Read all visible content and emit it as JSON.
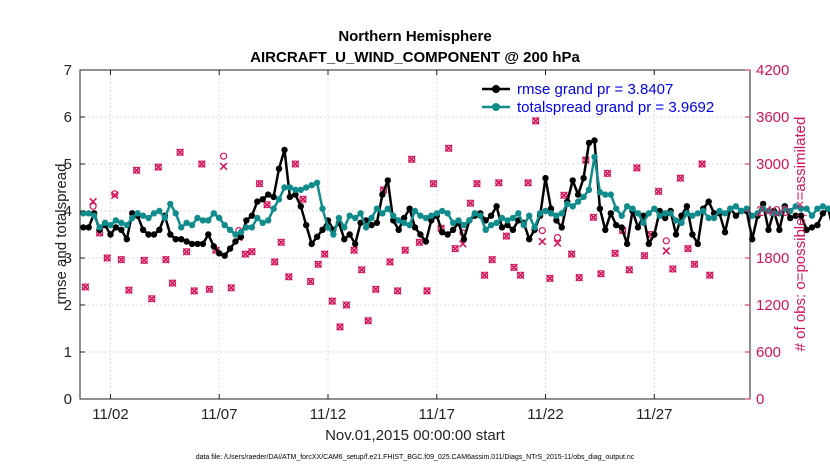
{
  "chart_data": {
    "type": "line",
    "title": "Northern Hemisphere",
    "subtitle": "AIRCRAFT_U_WIND_COMPONENT @ 200 hPa",
    "xlabel": "Nov.01,2015 00:00:00 start",
    "ylabel": "rmse and totalspread",
    "y2label": "# of obs: o=possible; ×=assimilated",
    "footnote": "data file: /Users/raeder/DAI/ATM_forcXX/CAM6_setup/f.e21.FHIST_BGC.f09_025.CAM6assim.011/Diags_NTrS_2015-11/obs_diag_output.nc",
    "xlim": [
      0.6,
      31.4
    ],
    "ylim": [
      0,
      7
    ],
    "y2lim": [
      0,
      4200
    ],
    "x_ticks": [
      {
        "x": 2,
        "label": "11/02"
      },
      {
        "x": 7,
        "label": "11/07"
      },
      {
        "x": 12,
        "label": "11/12"
      },
      {
        "x": 17,
        "label": "11/17"
      },
      {
        "x": 22,
        "label": "11/22"
      },
      {
        "x": 27,
        "label": "11/27"
      }
    ],
    "y_ticks": [
      0,
      1,
      2,
      3,
      4,
      5,
      6,
      7
    ],
    "y2_ticks": [
      0,
      600,
      1200,
      1800,
      2400,
      3000,
      3600,
      4200
    ],
    "legend": {
      "position": "top-right",
      "entries": [
        "rmse grand pr = 3.8407",
        "totalspread grand pr = 3.9692"
      ]
    },
    "x_start": 0.75,
    "x_step": 0.25,
    "series": [
      {
        "name": "rmse grand pr = 3.8407",
        "axis": "left",
        "color": "#000000",
        "values": [
          3.65,
          3.65,
          3.95,
          3.6,
          3.7,
          3.5,
          3.65,
          3.6,
          3.4,
          3.95,
          3.9,
          3.6,
          3.5,
          3.5,
          3.6,
          3.9,
          3.5,
          3.4,
          3.4,
          3.35,
          3.3,
          3.3,
          3.3,
          3.5,
          3.25,
          3.1,
          3.05,
          3.2,
          3.35,
          3.45,
          3.8,
          3.9,
          4.2,
          4.25,
          4.35,
          4.3,
          4.9,
          5.3,
          4.3,
          4.35,
          4.1,
          3.7,
          3.3,
          3.45,
          3.6,
          3.8,
          3.6,
          3.75,
          3.4,
          3.5,
          3.3,
          3.75,
          3.8,
          3.7,
          3.75,
          4.35,
          4.65,
          3.8,
          3.6,
          3.85,
          4.05,
          3.65,
          3.5,
          3.35,
          3.8,
          3.9,
          3.55,
          3.5,
          3.6,
          3.75,
          3.4,
          3.8,
          3.9,
          3.95,
          3.8,
          3.9,
          4.1,
          3.65,
          3.7,
          3.6,
          3.8,
          3.75,
          3.4,
          3.6,
          3.9,
          4.7,
          4.05,
          3.8,
          3.65,
          4.2,
          4.65,
          4.35,
          4.7,
          5.45,
          5.5,
          4.05,
          3.6,
          3.95,
          3.7,
          3.65,
          3.3,
          4.0,
          3.65,
          3.9,
          3.3,
          3.5,
          4.0,
          3.85,
          4.0,
          3.5,
          3.9,
          4.1,
          3.5,
          3.3,
          4.05,
          4.2,
          3.95,
          3.95,
          3.55,
          4.05,
          3.9,
          4.0,
          4.0,
          3.4,
          3.9,
          4.15,
          3.6,
          4.0,
          3.6,
          4.1,
          3.85,
          3.9,
          3.9,
          3.6,
          3.65,
          3.7,
          3.95,
          4.05,
          3.55,
          3.2
        ]
      },
      {
        "name": "totalspread grand pr = 3.9692",
        "axis": "left",
        "color": "#118c8c",
        "values": [
          3.95,
          3.95,
          3.9,
          3.65,
          3.75,
          3.7,
          3.8,
          3.75,
          3.7,
          3.85,
          3.95,
          3.9,
          3.85,
          3.95,
          4.0,
          3.85,
          4.15,
          3.95,
          3.65,
          3.75,
          3.7,
          3.85,
          3.8,
          3.8,
          3.95,
          3.85,
          3.7,
          3.6,
          3.5,
          3.55,
          3.65,
          3.65,
          3.85,
          3.75,
          3.8,
          4.05,
          4.25,
          4.5,
          4.5,
          4.45,
          4.45,
          4.5,
          4.55,
          4.6,
          4.05,
          3.65,
          3.5,
          3.85,
          3.65,
          3.9,
          3.85,
          3.95,
          3.65,
          3.85,
          4.05,
          3.95,
          4.05,
          3.9,
          3.8,
          3.75,
          3.7,
          4.0,
          3.9,
          3.85,
          3.9,
          3.95,
          4.0,
          3.95,
          3.75,
          3.8,
          3.7,
          3.8,
          3.95,
          3.9,
          3.6,
          3.7,
          3.75,
          3.85,
          3.8,
          3.85,
          3.95,
          3.7,
          3.9,
          3.65,
          3.95,
          4.0,
          3.95,
          3.9,
          3.95,
          4.15,
          4.1,
          4.2,
          4.3,
          4.45,
          5.15,
          4.4,
          4.35,
          4.35,
          4.05,
          3.9,
          4.1,
          4.05,
          3.95,
          3.75,
          3.95,
          4.05,
          3.9,
          3.95,
          3.95,
          3.8,
          3.75,
          3.95,
          3.9,
          3.95,
          4.0,
          3.85,
          3.85,
          4.0,
          3.95,
          4.05,
          4.1,
          4.0,
          4.05,
          3.9,
          3.95,
          4.05,
          4.0,
          3.95,
          3.95,
          4.05,
          4.0,
          4.1,
          4.05,
          4.05,
          3.9,
          4.05,
          4.1,
          4.05,
          4.0,
          3.85
        ]
      },
      {
        "name": "possible",
        "axis": "right",
        "color": "#d4145a",
        "marker": "circle",
        "values": [
          1430,
          2460,
          2120,
          1800,
          2620,
          1780,
          1390,
          2920,
          1770,
          1280,
          2960,
          1780,
          1480,
          3150,
          1880,
          1380,
          3000,
          1400,
          1900,
          3100,
          1420,
          2150,
          1850,
          1880,
          2750,
          2480,
          1750,
          2000,
          1560,
          3000,
          2550,
          1500,
          1720,
          1850,
          1250,
          920,
          1200,
          1900,
          1650,
          1000,
          1400,
          2670,
          1750,
          1380,
          1900,
          3060,
          2000,
          1380,
          2750,
          2180,
          3200,
          1920,
          2120,
          2500,
          2750,
          1580,
          1780,
          2760,
          2080,
          1680,
          1580,
          2760,
          3550,
          2150,
          1540,
          2060,
          2600,
          1850,
          1550,
          3050,
          2320,
          1600,
          2880,
          1860,
          2150,
          1650,
          2950,
          1830,
          2100,
          2650,
          2020,
          1660,
          2820,
          1920,
          1720,
          3000,
          1580
        ]
      },
      {
        "name": "assimilated",
        "axis": "right",
        "color": "#d4145a",
        "marker": "cross",
        "values": [
          1430,
          2520,
          2120,
          1800,
          2600,
          1780,
          1390,
          2920,
          1770,
          1280,
          2960,
          1780,
          1480,
          3150,
          1880,
          1380,
          3000,
          1400,
          1900,
          2970,
          1420,
          2060,
          1850,
          1880,
          2750,
          2480,
          1750,
          2000,
          1560,
          3000,
          2550,
          1500,
          1720,
          1850,
          1250,
          920,
          1200,
          1900,
          1650,
          1000,
          1400,
          2670,
          1750,
          1380,
          1900,
          3060,
          2000,
          1380,
          2750,
          2180,
          3200,
          1920,
          1980,
          2500,
          2750,
          1580,
          1780,
          2760,
          2080,
          1680,
          1580,
          2760,
          3550,
          2010,
          1540,
          1990,
          2600,
          1850,
          1550,
          3050,
          2320,
          1600,
          2880,
          1860,
          2150,
          1650,
          2950,
          1830,
          2100,
          2650,
          1890,
          1660,
          2820,
          1920,
          1720,
          3000,
          1580
        ]
      }
    ],
    "counts_x": [
      0.85,
      1.2,
      1.5,
      1.85,
      2.2,
      2.5,
      2.85,
      3.2,
      3.55,
      3.9,
      4.2,
      4.55,
      4.85,
      5.2,
      5.5,
      5.85,
      6.2,
      6.55,
      6.85,
      7.2,
      7.55,
      7.9,
      8.2,
      8.5,
      8.85,
      9.2,
      9.55,
      9.85,
      10.2,
      10.5,
      10.85,
      11.2,
      11.55,
      11.85,
      12.2,
      12.55,
      12.85,
      13.2,
      13.55,
      13.85,
      14.2,
      14.55,
      14.85,
      15.2,
      15.55,
      15.85,
      16.2,
      16.55,
      16.85,
      17.2,
      17.55,
      17.85,
      18.2,
      18.55,
      18.85,
      19.2,
      19.55,
      19.85,
      20.2,
      20.55,
      20.85,
      21.2,
      21.55,
      21.85,
      22.2,
      22.55,
      22.85,
      23.2,
      23.55,
      23.85,
      24.2,
      24.55,
      24.85,
      25.2,
      25.55,
      25.85,
      26.2,
      26.55,
      26.85,
      27.2,
      27.55,
      27.85,
      28.2,
      28.55,
      28.85,
      29.2,
      29.55
    ]
  }
}
